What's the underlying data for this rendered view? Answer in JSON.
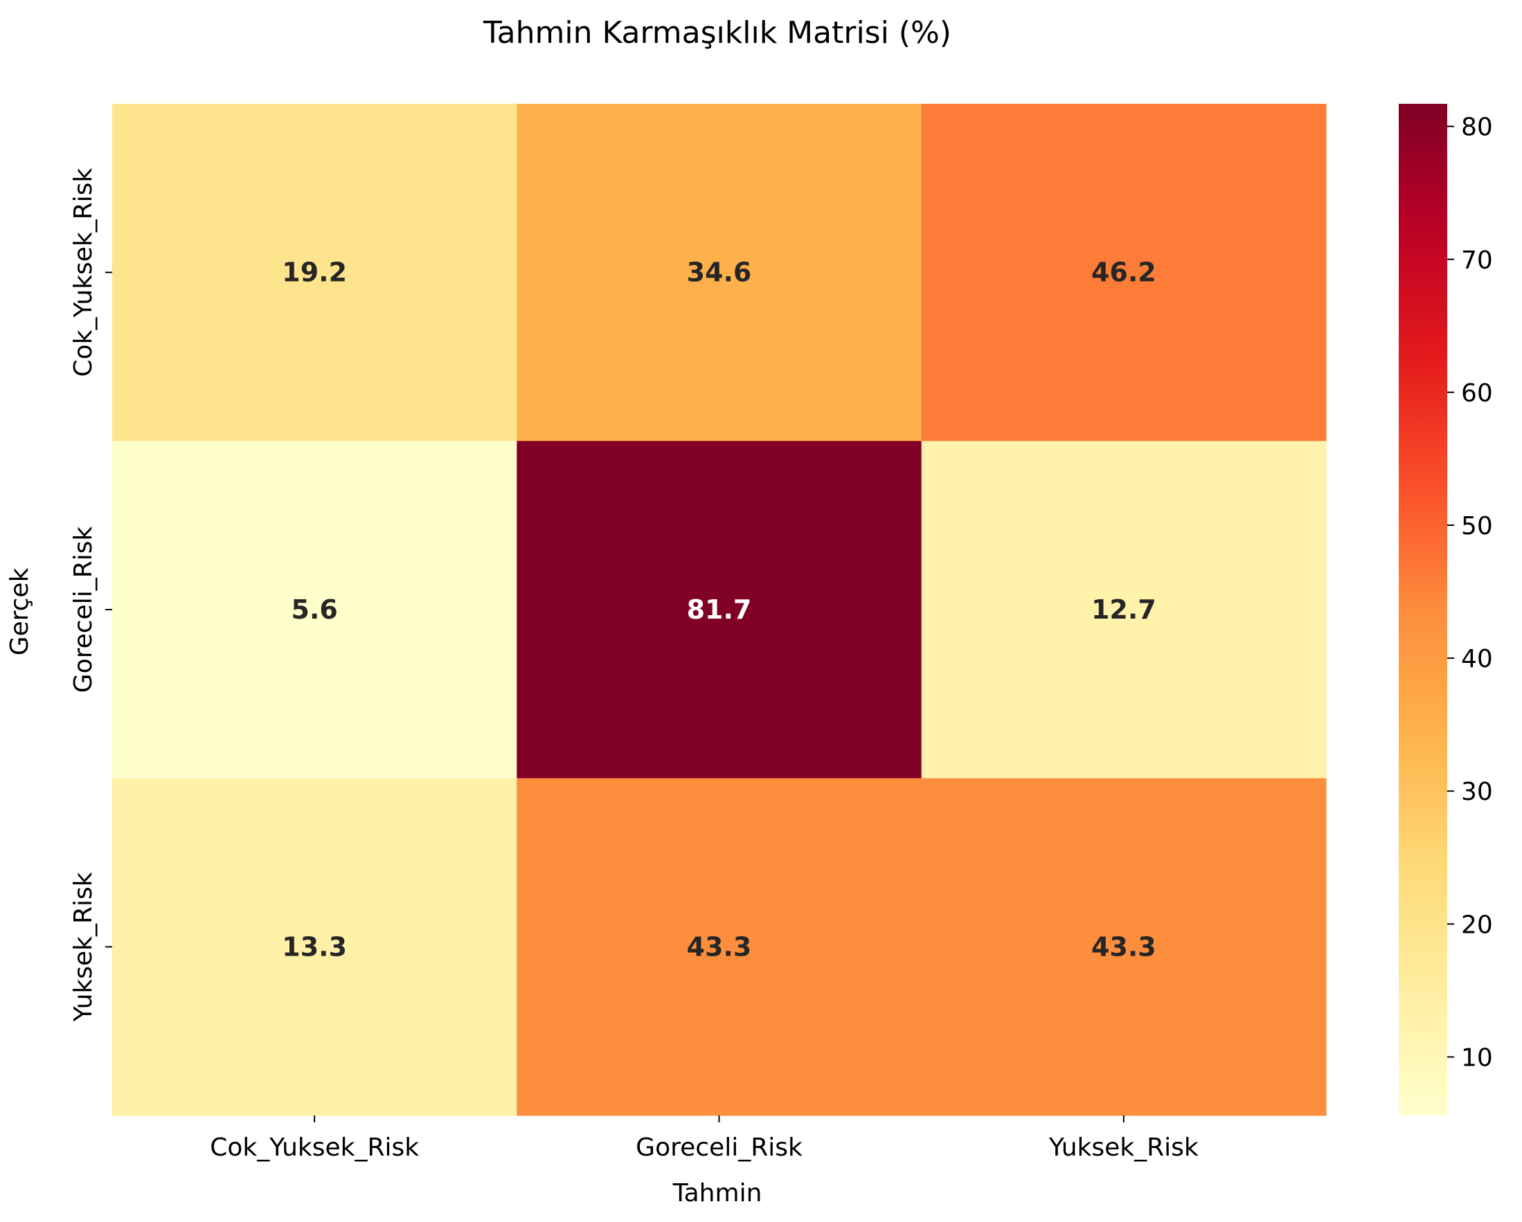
{
  "chart_data": {
    "type": "heatmap",
    "title": "Tahmin Karmaşıklık Matrisi (%)",
    "xlabel": "Tahmin",
    "ylabel": "Gerçek",
    "x_categories": [
      "Cok_Yuksek_Risk",
      "Goreceli_Risk",
      "Yuksek_Risk"
    ],
    "y_categories": [
      "Cok_Yuksek_Risk",
      "Goreceli_Risk",
      "Yuksek_Risk"
    ],
    "values": [
      [
        19.2,
        34.6,
        46.2
      ],
      [
        5.6,
        81.7,
        12.7
      ],
      [
        13.3,
        43.3,
        43.3
      ]
    ],
    "colormap": "YlOrRd",
    "value_range": [
      5.6,
      81.7
    ],
    "colorbar_ticks": [
      10,
      20,
      30,
      40,
      50,
      60,
      70,
      80
    ],
    "grid": false
  }
}
